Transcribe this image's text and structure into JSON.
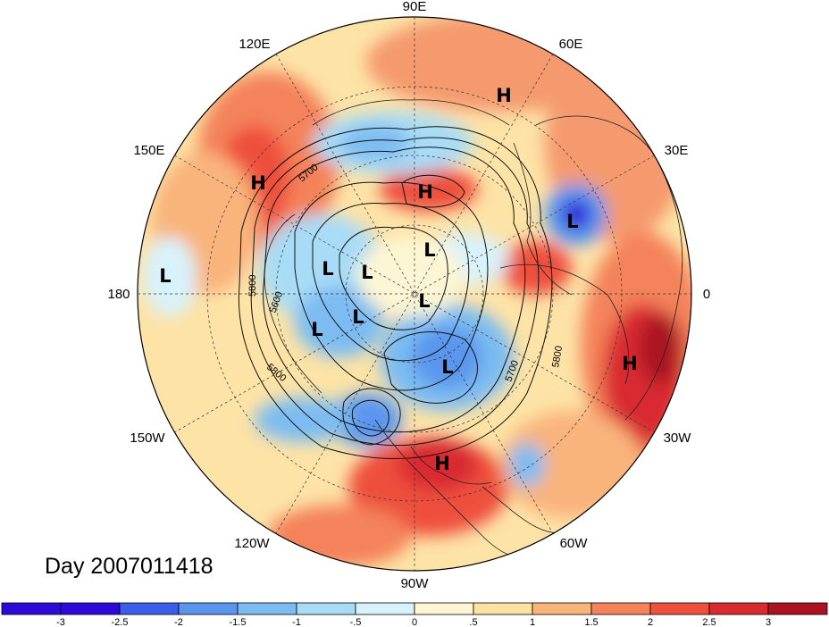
{
  "title": "Day 2007011418",
  "longitude_labels": {
    "top": "90E",
    "top_right": "60E",
    "upper_right": "30E",
    "right": "0",
    "lower_right": "30W",
    "bottom_right": "60W",
    "bottom": "90W",
    "bottom_left": "120W",
    "lower_left": "150W",
    "left": "180",
    "upper_left": "150E",
    "top_left": "120E"
  },
  "pressure_centers": [
    {
      "type": "H",
      "label": "H"
    },
    {
      "type": "H",
      "label": "H"
    },
    {
      "type": "H",
      "label": "H"
    },
    {
      "type": "H",
      "label": "H"
    },
    {
      "type": "H",
      "label": "H"
    },
    {
      "type": "L",
      "label": "L"
    },
    {
      "type": "L",
      "label": "L"
    },
    {
      "type": "L",
      "label": "L"
    },
    {
      "type": "L",
      "label": "L"
    },
    {
      "type": "L",
      "label": "L"
    },
    {
      "type": "L",
      "label": "L"
    },
    {
      "type": "L",
      "label": "L"
    },
    {
      "type": "L",
      "label": "L"
    },
    {
      "type": "L",
      "label": "L"
    }
  ],
  "contour_labels": [
    "5700",
    "5800",
    "5600",
    "5800",
    "5700",
    "5800"
  ],
  "colorbar": {
    "ticks": [
      "-3",
      "-2.5",
      "-2",
      "-1.5",
      "-1",
      "-.5",
      "0",
      ".5",
      "1",
      "1.5",
      "2",
      "2.5",
      "3"
    ],
    "colors": [
      "#2d0ad8",
      "#3a5ee8",
      "#5a96ee",
      "#7cbcf2",
      "#a8dcf6",
      "#d8f2fc",
      "#fdf6d4",
      "#fde2a2",
      "#f9b47c",
      "#f4825a",
      "#ee503e",
      "#d92a30",
      "#ab1222"
    ]
  }
}
